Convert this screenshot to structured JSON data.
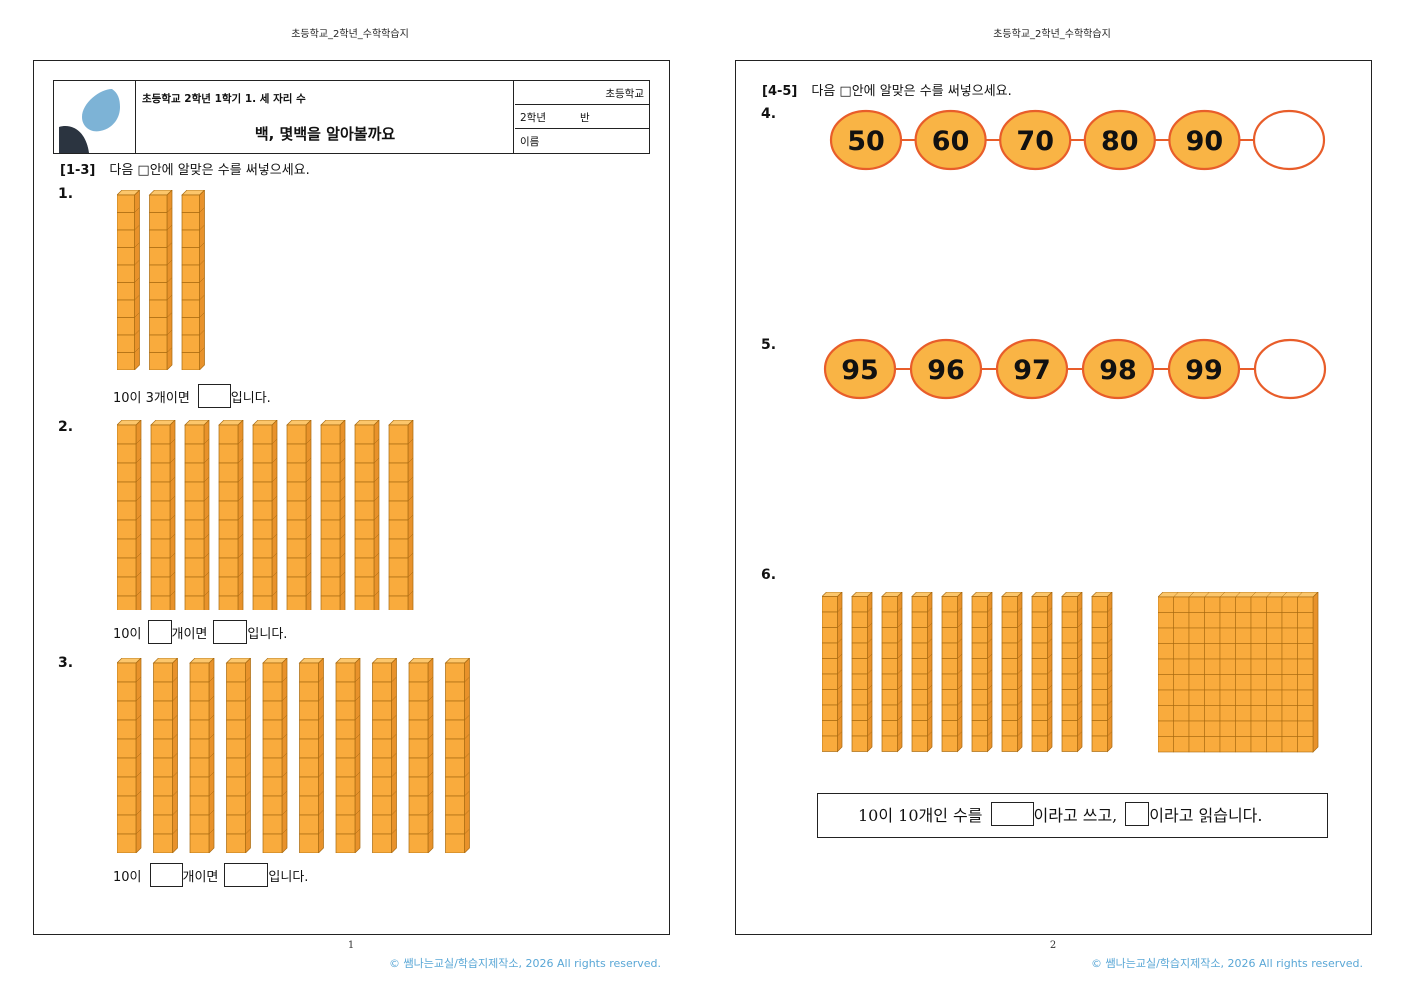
{
  "pages": [
    {
      "header": "초등학교_2학년_수학학습지",
      "number": "1",
      "copyright": "©  쌤나는교실/학습지제작소,  2026  All  rights  reserved."
    },
    {
      "header": "초등학교_2학년_수학학습지",
      "number": "2",
      "copyright": "©  쌤나는교실/학습지제작소,  2026  All  rights  reserved."
    }
  ],
  "title_block": {
    "course": "초등학교  2학년  1학기  1.  세  자리  수",
    "title": "백,  몇백을  알아볼까요",
    "school": "초등학교",
    "grade": "2학년",
    "class_label": "반",
    "name_label": "이름"
  },
  "section1": {
    "range": "[1-3]",
    "text": "다음  □안에  알맞은  수를  써넣으세요."
  },
  "section2": {
    "range": "[4-5]",
    "text": "다음  □안에  알맞은  수를  써넣으세요."
  },
  "questions": {
    "q1": {
      "number": "1.",
      "rods": 3,
      "before": "10이  3개이면",
      "after": "입니다."
    },
    "q2": {
      "number": "2.",
      "rods": 9,
      "before": "10이",
      "middle": "개이면",
      "after": "입니다."
    },
    "q3": {
      "number": "3.",
      "rods": 10,
      "before": "10이",
      "middle": "개이면",
      "after": "입니다."
    },
    "q4": {
      "number": "4.",
      "values": [
        "50",
        "60",
        "70",
        "80",
        "90",
        ""
      ]
    },
    "q5": {
      "number": "5.",
      "values": [
        "95",
        "96",
        "97",
        "98",
        "99",
        ""
      ]
    },
    "q6": {
      "number": "6.",
      "rods": 10,
      "flat_rows": 10,
      "flat_cols": 10,
      "before": "10이  10개인  수를",
      "middle": "이라고  쓰고,",
      "after": "이라고  읽습니다."
    }
  },
  "colors": {
    "block_fill": "#f9ab3d",
    "block_edge": "#a86a10",
    "oval_fill": "#f9b445",
    "oval_stroke": "#e85d2a",
    "logo_blue": "#7db3d6",
    "logo_dark": "#2b3440"
  }
}
